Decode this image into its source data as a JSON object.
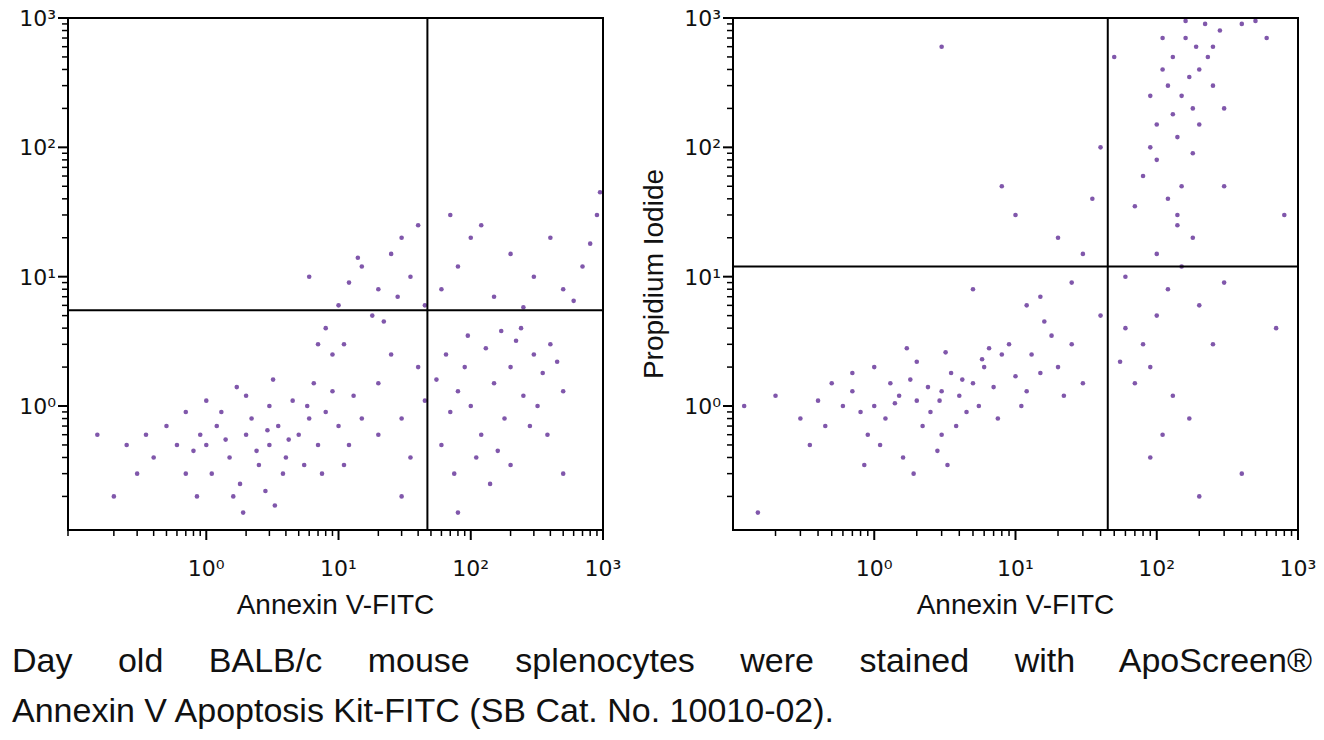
{
  "chart_data": [
    {
      "type": "scatter",
      "log": true,
      "grid": false,
      "marker": "dot",
      "color": "#6a3a9c",
      "x_label": "Annexin V-FITC",
      "xlim": [
        0.09,
        1000
      ],
      "ylim": [
        0.11,
        1000
      ],
      "xticks": [
        {
          "value": 1,
          "label": "10⁰"
        },
        {
          "value": 10,
          "label": "10¹"
        },
        {
          "value": 100,
          "label": "10²"
        },
        {
          "value": 1000,
          "label": "10³"
        }
      ],
      "yticks": [
        {
          "value": 1,
          "label": "10⁰"
        },
        {
          "value": 10,
          "label": "10¹"
        },
        {
          "value": 100,
          "label": "10²"
        },
        {
          "value": 1000,
          "label": "10³"
        }
      ],
      "gate": {
        "x": 47,
        "y": 5.5
      },
      "x": [
        1,
        1.5,
        2,
        2.5,
        3,
        1.2,
        0.8,
        0.7,
        1.8,
        2.2,
        3.5,
        4,
        5,
        6,
        4.5,
        3,
        2,
        1.3,
        0.9,
        0.6,
        0.5,
        0.4,
        1.1,
        1.6,
        2.8,
        3.8,
        5.5,
        7,
        8,
        10,
        12,
        9,
        6.5,
        3.2,
        1.7,
        1,
        0.7,
        0.35,
        0.3,
        2.4,
        1.4,
        2.9,
        4.2,
        5.8,
        15,
        13,
        20,
        1.9,
        3.3,
        0.85,
        0.25,
        0.15,
        7.5,
        11,
        100,
        150,
        200,
        250,
        300,
        180,
        120,
        80,
        70,
        90,
        130,
        220,
        350,
        400,
        280,
        160,
        110,
        60,
        75,
        140,
        200,
        320,
        450,
        500,
        240,
        170,
        95,
        65,
        55,
        380,
        20,
        30,
        40,
        25,
        35,
        45,
        8,
        10,
        12,
        15,
        20,
        25,
        30,
        35,
        40,
        18,
        7,
        6,
        14,
        22,
        45,
        28,
        9,
        11,
        60,
        80,
        100,
        150,
        200,
        300,
        400,
        500,
        700,
        900,
        120,
        250,
        600,
        800,
        950,
        70,
        30,
        80,
        0.2,
        500
      ],
      "values": [
        0.5,
        0.4,
        0.6,
        0.35,
        0.5,
        0.7,
        0.45,
        0.3,
        0.25,
        0.8,
        0.7,
        0.4,
        0.6,
        0.8,
        1.1,
        1,
        1.2,
        0.9,
        0.6,
        0.5,
        0.7,
        0.4,
        0.3,
        0.2,
        0.22,
        0.3,
        0.35,
        0.5,
        0.9,
        0.7,
        0.5,
        1.3,
        1.5,
        1.6,
        1.4,
        1.1,
        0.9,
        0.6,
        0.3,
        0.45,
        0.55,
        0.65,
        0.55,
        1,
        0.8,
        1.2,
        0.6,
        0.15,
        0.17,
        0.2,
        0.5,
        0.6,
        0.3,
        0.35,
        1,
        1.5,
        2,
        1.2,
        2.5,
        0.8,
        0.6,
        1.3,
        0.9,
        2,
        2.8,
        3.2,
        1.8,
        3,
        0.7,
        0.45,
        0.4,
        0.5,
        0.3,
        0.25,
        0.35,
        1,
        2.2,
        1.3,
        4,
        3.8,
        3.5,
        2.5,
        1.6,
        0.6,
        1.5,
        0.8,
        2,
        2.5,
        0.4,
        1.1,
        4,
        6,
        9,
        12,
        8,
        15,
        20,
        10,
        25,
        5,
        3,
        10,
        14,
        4.5,
        6,
        7,
        2.5,
        3,
        8,
        12,
        20,
        7,
        15,
        10,
        20,
        8,
        12,
        30,
        25,
        5.8,
        6.5,
        18,
        45,
        30,
        0.2,
        0.15,
        0.2,
        0.3
      ]
    },
    {
      "type": "scatter",
      "log": true,
      "grid": false,
      "marker": "dot",
      "color": "#6a3a9c",
      "x_label": "Annexin V-FITC",
      "y_label": "Propidium Iodide",
      "xlim": [
        0.1,
        1000
      ],
      "ylim": [
        0.11,
        1000
      ],
      "xticks": [
        {
          "value": 1,
          "label": "10⁰"
        },
        {
          "value": 10,
          "label": "10¹"
        },
        {
          "value": 100,
          "label": "10²"
        },
        {
          "value": 1000,
          "label": "10³"
        }
      ],
      "yticks": [
        {
          "value": 1,
          "label": "10⁰"
        },
        {
          "value": 10,
          "label": "10¹"
        },
        {
          "value": 100,
          "label": "10²"
        },
        {
          "value": 1000,
          "label": "10³"
        }
      ],
      "gate": {
        "x": 45,
        "y": 12
      },
      "x": [
        1,
        1.5,
        2,
        2.5,
        3,
        1.2,
        0.8,
        0.7,
        1.8,
        2.2,
        3.5,
        4,
        5,
        6,
        4.5,
        3,
        2,
        1.3,
        0.9,
        0.6,
        0.5,
        0.45,
        1.1,
        1.6,
        2.8,
        3.8,
        5.5,
        7,
        8,
        10,
        12,
        9,
        6.5,
        3.2,
        1.7,
        1,
        0.7,
        0.4,
        0.35,
        2.4,
        1.4,
        2.9,
        4.2,
        5.8,
        15,
        13,
        20,
        1.9,
        3.3,
        0.85,
        0.3,
        0.2,
        7.5,
        11,
        18,
        25,
        30,
        16,
        22,
        80,
        100,
        120,
        150,
        90,
        200,
        60,
        70,
        130,
        110,
        180,
        140,
        100,
        250,
        60,
        300,
        55,
        170,
        90,
        40,
        150,
        120,
        180,
        100,
        200,
        130,
        160,
        220,
        90,
        140,
        250,
        110,
        170,
        130,
        190,
        80,
        100,
        150,
        200,
        120,
        280,
        300,
        230,
        90,
        160,
        110,
        140,
        180,
        250,
        70,
        20,
        30,
        10,
        5,
        8,
        3,
        40,
        15,
        25,
        50,
        12,
        35,
        400,
        500,
        600,
        800,
        300,
        0.15,
        200,
        400,
        0.12,
        700
      ],
      "values": [
        1,
        1.2,
        1.1,
        0.9,
        1.3,
        0.8,
        0.9,
        1.3,
        1.6,
        0.7,
        1.8,
        1.2,
        1.5,
        2,
        0.9,
        0.6,
        2.2,
        1.5,
        0.6,
        1,
        1.5,
        0.7,
        0.5,
        0.4,
        0.45,
        0.7,
        1,
        1.4,
        2.5,
        1.7,
        1.3,
        3,
        2.8,
        2.6,
        2.8,
        2,
        1.8,
        1.1,
        0.5,
        1.4,
        1.05,
        1.1,
        1.6,
        2.3,
        1.8,
        2.5,
        2,
        0.3,
        0.35,
        0.35,
        0.8,
        1.2,
        0.8,
        1,
        3.5,
        3,
        1.5,
        4.5,
        1.2,
        3,
        5,
        8,
        12,
        2,
        6,
        4,
        1.5,
        1.2,
        0.6,
        20,
        25,
        15,
        3,
        10,
        9,
        2.2,
        0.8,
        0.4,
        5,
        250,
        300,
        200,
        150,
        400,
        500,
        700,
        900,
        100,
        120,
        300,
        400,
        350,
        180,
        600,
        60,
        80,
        50,
        150,
        40,
        800,
        200,
        500,
        250,
        950,
        700,
        30,
        90,
        600,
        35,
        20,
        15,
        30,
        8,
        50,
        600,
        100,
        7,
        9,
        500,
        6,
        40,
        900,
        950,
        700,
        30,
        50,
        0.15,
        0.2,
        0.3,
        1,
        4
      ]
    }
  ],
  "caption": [
    "Day old BALB/c mouse splenocytes were stained with ApoScreen®",
    "Annexin V Apoptosis Kit-FITC (SB Cat. No. 10010-02)."
  ]
}
